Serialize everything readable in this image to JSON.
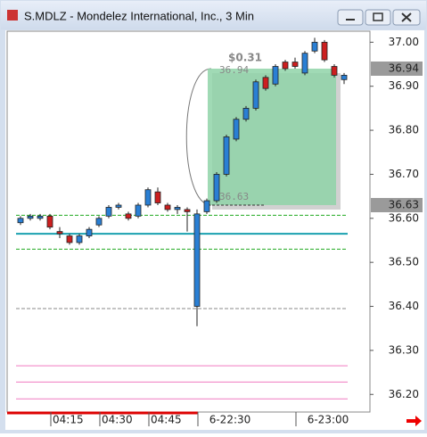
{
  "window_title": "S.MDLZ - Mondelez International, Inc., 3 Min",
  "chart_data": {
    "type": "candlestick",
    "categories": [
      null,
      null,
      null,
      "04:15",
      null,
      null,
      null,
      null,
      "04:30",
      null,
      null,
      null,
      null,
      "04:45",
      null,
      null,
      null,
      null,
      "6-22:30",
      null,
      null,
      null,
      null,
      null,
      null,
      null,
      null,
      null,
      "6-23:00",
      null,
      null,
      null,
      null,
      null
    ],
    "open": [
      36.59,
      36.6,
      36.6,
      36.605,
      36.57,
      36.56,
      36.545,
      36.56,
      36.585,
      36.605,
      36.625,
      36.61,
      36.605,
      36.63,
      36.66,
      36.63,
      36.62,
      36.62,
      36.4,
      36.615,
      36.64,
      36.7,
      36.78,
      36.825,
      36.85,
      36.92,
      36.905,
      36.955,
      36.955,
      36.93,
      36.98,
      37.0,
      36.945,
      36.915
    ],
    "high": [
      36.605,
      36.61,
      36.61,
      36.61,
      36.58,
      36.565,
      36.565,
      36.58,
      36.605,
      36.63,
      36.635,
      36.615,
      36.635,
      36.67,
      36.67,
      36.635,
      36.63,
      36.625,
      36.62,
      36.645,
      36.705,
      36.79,
      36.83,
      36.855,
      36.915,
      36.925,
      36.95,
      36.96,
      36.965,
      36.98,
      37.01,
      37.005,
      36.95,
      36.93
    ],
    "low": [
      36.585,
      36.595,
      36.595,
      36.575,
      36.555,
      36.54,
      36.54,
      36.555,
      36.58,
      36.6,
      36.62,
      36.595,
      36.6,
      36.625,
      36.63,
      36.615,
      36.61,
      36.57,
      36.355,
      36.61,
      36.635,
      36.695,
      36.775,
      36.82,
      36.845,
      36.89,
      36.9,
      36.935,
      36.94,
      36.925,
      36.975,
      36.955,
      36.92,
      36.905
    ],
    "close": [
      36.6,
      36.605,
      36.605,
      36.58,
      36.565,
      36.545,
      36.56,
      36.575,
      36.6,
      36.625,
      36.63,
      36.6,
      36.63,
      36.665,
      36.635,
      36.62,
      36.625,
      36.615,
      36.61,
      36.64,
      36.7,
      36.785,
      36.825,
      36.85,
      36.91,
      36.895,
      36.945,
      36.94,
      36.945,
      36.975,
      37.0,
      36.96,
      36.925,
      36.925
    ],
    "up_color": "#2a7fd4",
    "down_color": "#cc1f1f",
    "ylim": [
      36.16,
      37.025
    ],
    "yticks": [
      {
        "value": 37.0,
        "label": "37.00"
      },
      {
        "value": 36.9,
        "label": "36.90"
      },
      {
        "value": 36.8,
        "label": "36.80"
      },
      {
        "value": 36.7,
        "label": "36.70"
      },
      {
        "value": 36.6,
        "label": "36.60"
      },
      {
        "value": 36.5,
        "label": "36.50"
      },
      {
        "value": 36.4,
        "label": "36.40"
      },
      {
        "value": 36.3,
        "label": "36.30"
      },
      {
        "value": 36.2,
        "label": "36.20"
      }
    ],
    "reference_lines": [
      {
        "value": 36.607,
        "color": "#22aa22",
        "dashed": true
      },
      {
        "value": 36.53,
        "color": "#22aa22",
        "dashed": true
      },
      {
        "value": 36.565,
        "color": "#1aa0b0",
        "dashed": false
      },
      {
        "value": 36.395,
        "color": "#888888",
        "dashed": true
      },
      {
        "value": 36.265,
        "color": "#f07ac0",
        "dashed": false
      },
      {
        "value": 36.228,
        "color": "#f07ac0",
        "dashed": false
      },
      {
        "value": 36.19,
        "color": "#f07ac0",
        "dashed": false
      }
    ],
    "price_markers": [
      36.94,
      36.63
    ],
    "measure": {
      "high": 36.94,
      "low": 36.63,
      "change": 0.31,
      "change_label": "$0.31"
    }
  }
}
